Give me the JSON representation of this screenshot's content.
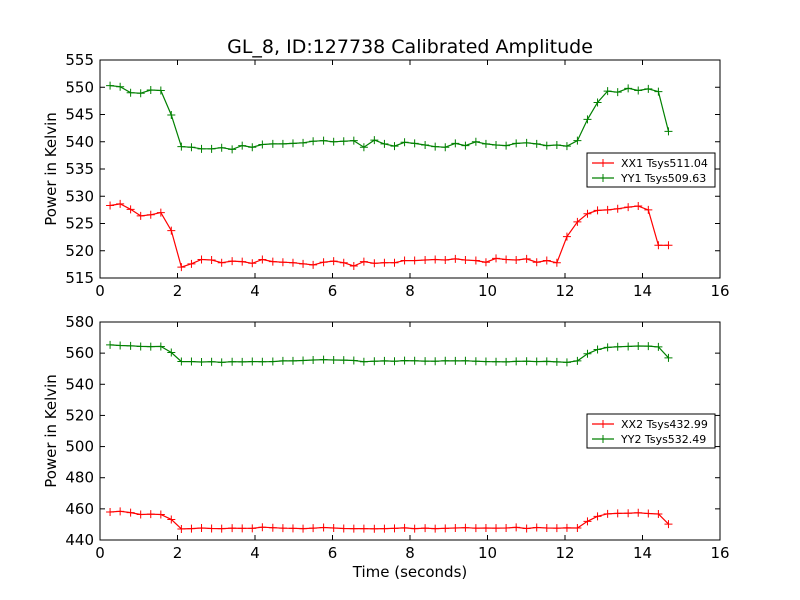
{
  "figure": {
    "title": "GL_8, ID:127738 Calibrated Amplitude",
    "xlabel": "Time (seconds)"
  },
  "chart_data": [
    {
      "type": "line",
      "ylabel": "Power in Kelvin",
      "xlim": [
        0,
        16
      ],
      "ylim": [
        515,
        555
      ],
      "xticks": [
        0,
        2,
        4,
        6,
        8,
        10,
        12,
        14,
        16
      ],
      "yticks": [
        515,
        520,
        525,
        530,
        535,
        540,
        545,
        550,
        555
      ],
      "legend_position": "center-right",
      "marker": "plus",
      "x": [
        0.26,
        0.52,
        0.79,
        1.05,
        1.31,
        1.57,
        1.84,
        2.1,
        2.36,
        2.62,
        2.88,
        3.14,
        3.41,
        3.67,
        3.93,
        4.19,
        4.46,
        4.72,
        4.98,
        5.24,
        5.5,
        5.77,
        6.03,
        6.29,
        6.55,
        6.81,
        7.08,
        7.34,
        7.6,
        7.86,
        8.12,
        8.39,
        8.65,
        8.91,
        9.17,
        9.43,
        9.7,
        9.96,
        10.22,
        10.48,
        10.74,
        11.01,
        11.27,
        11.53,
        11.79,
        12.05,
        12.32,
        12.58,
        12.84,
        13.1,
        13.36,
        13.63,
        13.89,
        14.15,
        14.41,
        14.67
      ],
      "series": [
        {
          "name": "XX1 Tsys511.04",
          "color": "#ff0000",
          "values": [
            528.3,
            528.6,
            527.6,
            526.4,
            526.6,
            527.0,
            523.7,
            517.0,
            517.6,
            518.4,
            518.3,
            517.8,
            518.1,
            518.0,
            517.7,
            518.4,
            518.0,
            517.9,
            517.8,
            517.6,
            517.4,
            517.9,
            518.1,
            517.8,
            517.2,
            518.0,
            517.7,
            517.8,
            517.8,
            518.2,
            518.2,
            518.3,
            518.4,
            518.3,
            518.5,
            518.3,
            518.2,
            517.9,
            518.6,
            518.4,
            518.3,
            518.5,
            517.9,
            518.2,
            517.8,
            522.6,
            525.3,
            526.8,
            527.4,
            527.5,
            527.7,
            528.0,
            528.2,
            527.5,
            521.0,
            521.0
          ],
          "values_note_ignore": null
        },
        {
          "name": "YY1 Tsys509.63",
          "color": "#008000",
          "values": [
            550.3,
            550.1,
            549.0,
            548.9,
            549.5,
            549.4,
            544.9,
            539.1,
            539.0,
            538.7,
            538.7,
            538.9,
            538.6,
            539.3,
            539.0,
            539.5,
            539.6,
            539.6,
            539.7,
            539.8,
            540.1,
            540.2,
            540.0,
            540.1,
            540.2,
            539.0,
            540.3,
            539.6,
            539.2,
            539.9,
            539.7,
            539.4,
            539.1,
            539.0,
            539.7,
            539.3,
            540.0,
            539.6,
            539.4,
            539.3,
            539.7,
            539.8,
            539.6,
            539.3,
            539.4,
            539.2,
            540.2,
            544.1,
            547.2,
            549.3,
            549.1,
            549.8,
            549.4,
            549.7,
            549.2,
            541.9
          ]
        }
      ]
    },
    {
      "type": "line",
      "ylabel": "Power in Kelvin",
      "xlim": [
        0,
        16
      ],
      "ylim": [
        440,
        580
      ],
      "xticks": [
        0,
        2,
        4,
        6,
        8,
        10,
        12,
        14,
        16
      ],
      "yticks": [
        440,
        460,
        480,
        500,
        520,
        540,
        560,
        580
      ],
      "legend_position": "center-right",
      "marker": "plus",
      "series": [
        {
          "name": "XX2 Tsys432.99",
          "color": "#ff0000",
          "values": [
            458.0,
            458.4,
            457.6,
            456.4,
            456.6,
            456.4,
            453.2,
            447.1,
            447.3,
            447.7,
            447.4,
            447.3,
            447.6,
            447.5,
            447.5,
            448.2,
            447.9,
            447.6,
            447.5,
            447.3,
            447.6,
            448.0,
            447.7,
            447.4,
            447.3,
            447.3,
            447.2,
            447.3,
            447.5,
            447.8,
            447.3,
            447.6,
            447.3,
            447.5,
            447.7,
            447.9,
            447.6,
            447.7,
            447.6,
            447.7,
            448.1,
            447.4,
            448.0,
            447.7,
            447.6,
            447.8,
            447.7,
            452.0,
            455.2,
            456.8,
            457.1,
            457.2,
            457.5,
            457.0,
            456.7,
            450.2
          ]
        },
        {
          "name": "YY2 Tsys532.49",
          "color": "#008000",
          "values": [
            565.3,
            564.9,
            564.7,
            564.3,
            564.2,
            564.3,
            560.4,
            554.6,
            554.6,
            554.3,
            554.5,
            554.1,
            554.5,
            554.4,
            554.6,
            554.5,
            554.6,
            555.0,
            555.0,
            555.3,
            555.6,
            555.8,
            555.6,
            555.5,
            555.3,
            554.5,
            554.8,
            555.0,
            554.8,
            555.2,
            555.1,
            554.9,
            554.8,
            555.1,
            555.0,
            555.1,
            554.8,
            554.6,
            554.5,
            554.4,
            554.7,
            554.8,
            554.6,
            554.7,
            554.4,
            554.1,
            555.0,
            559.6,
            562.3,
            563.7,
            564.1,
            564.3,
            564.6,
            564.5,
            564.0,
            557.0
          ]
        }
      ]
    }
  ]
}
